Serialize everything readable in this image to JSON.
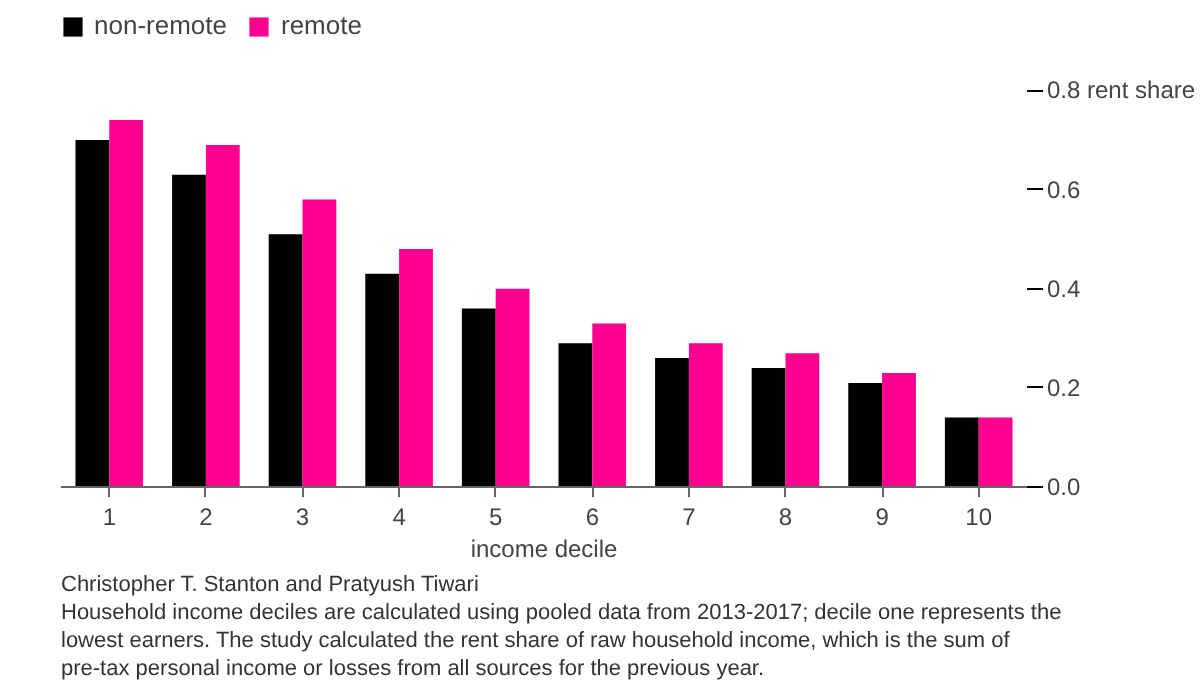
{
  "chart_data": {
    "type": "bar",
    "categories": [
      "1",
      "2",
      "3",
      "4",
      "5",
      "6",
      "7",
      "8",
      "9",
      "10"
    ],
    "series": [
      {
        "name": "non-remote",
        "color": "#000000",
        "values": [
          0.7,
          0.63,
          0.51,
          0.43,
          0.36,
          0.29,
          0.26,
          0.24,
          0.21,
          0.14
        ]
      },
      {
        "name": "remote",
        "color": "#ff0090",
        "values": [
          0.74,
          0.69,
          0.58,
          0.48,
          0.4,
          0.33,
          0.29,
          0.27,
          0.23,
          0.14
        ]
      }
    ],
    "xlabel": "income decile",
    "ylim": [
      0,
      0.96
    ],
    "yticks": [
      {
        "value": 0,
        "label": "0.0"
      },
      {
        "value": 0.2,
        "label": "0.2"
      },
      {
        "value": 0.4,
        "label": "0.4"
      },
      {
        "value": 0.6,
        "label": "0.6"
      },
      {
        "value": 0.8,
        "label": "0.8 rent share"
      }
    ],
    "grid": false,
    "legend": "top left",
    "annotations": [
      "Christopher T. Stanton and Pratyush Tiwari",
      "Household income deciles are calculated using pooled data from 2013-2017; decile one represents the lowest earners. The study calculated the rent share of raw household income, which is the sum of pre-tax personal income or losses from all sources for the previous year."
    ]
  }
}
